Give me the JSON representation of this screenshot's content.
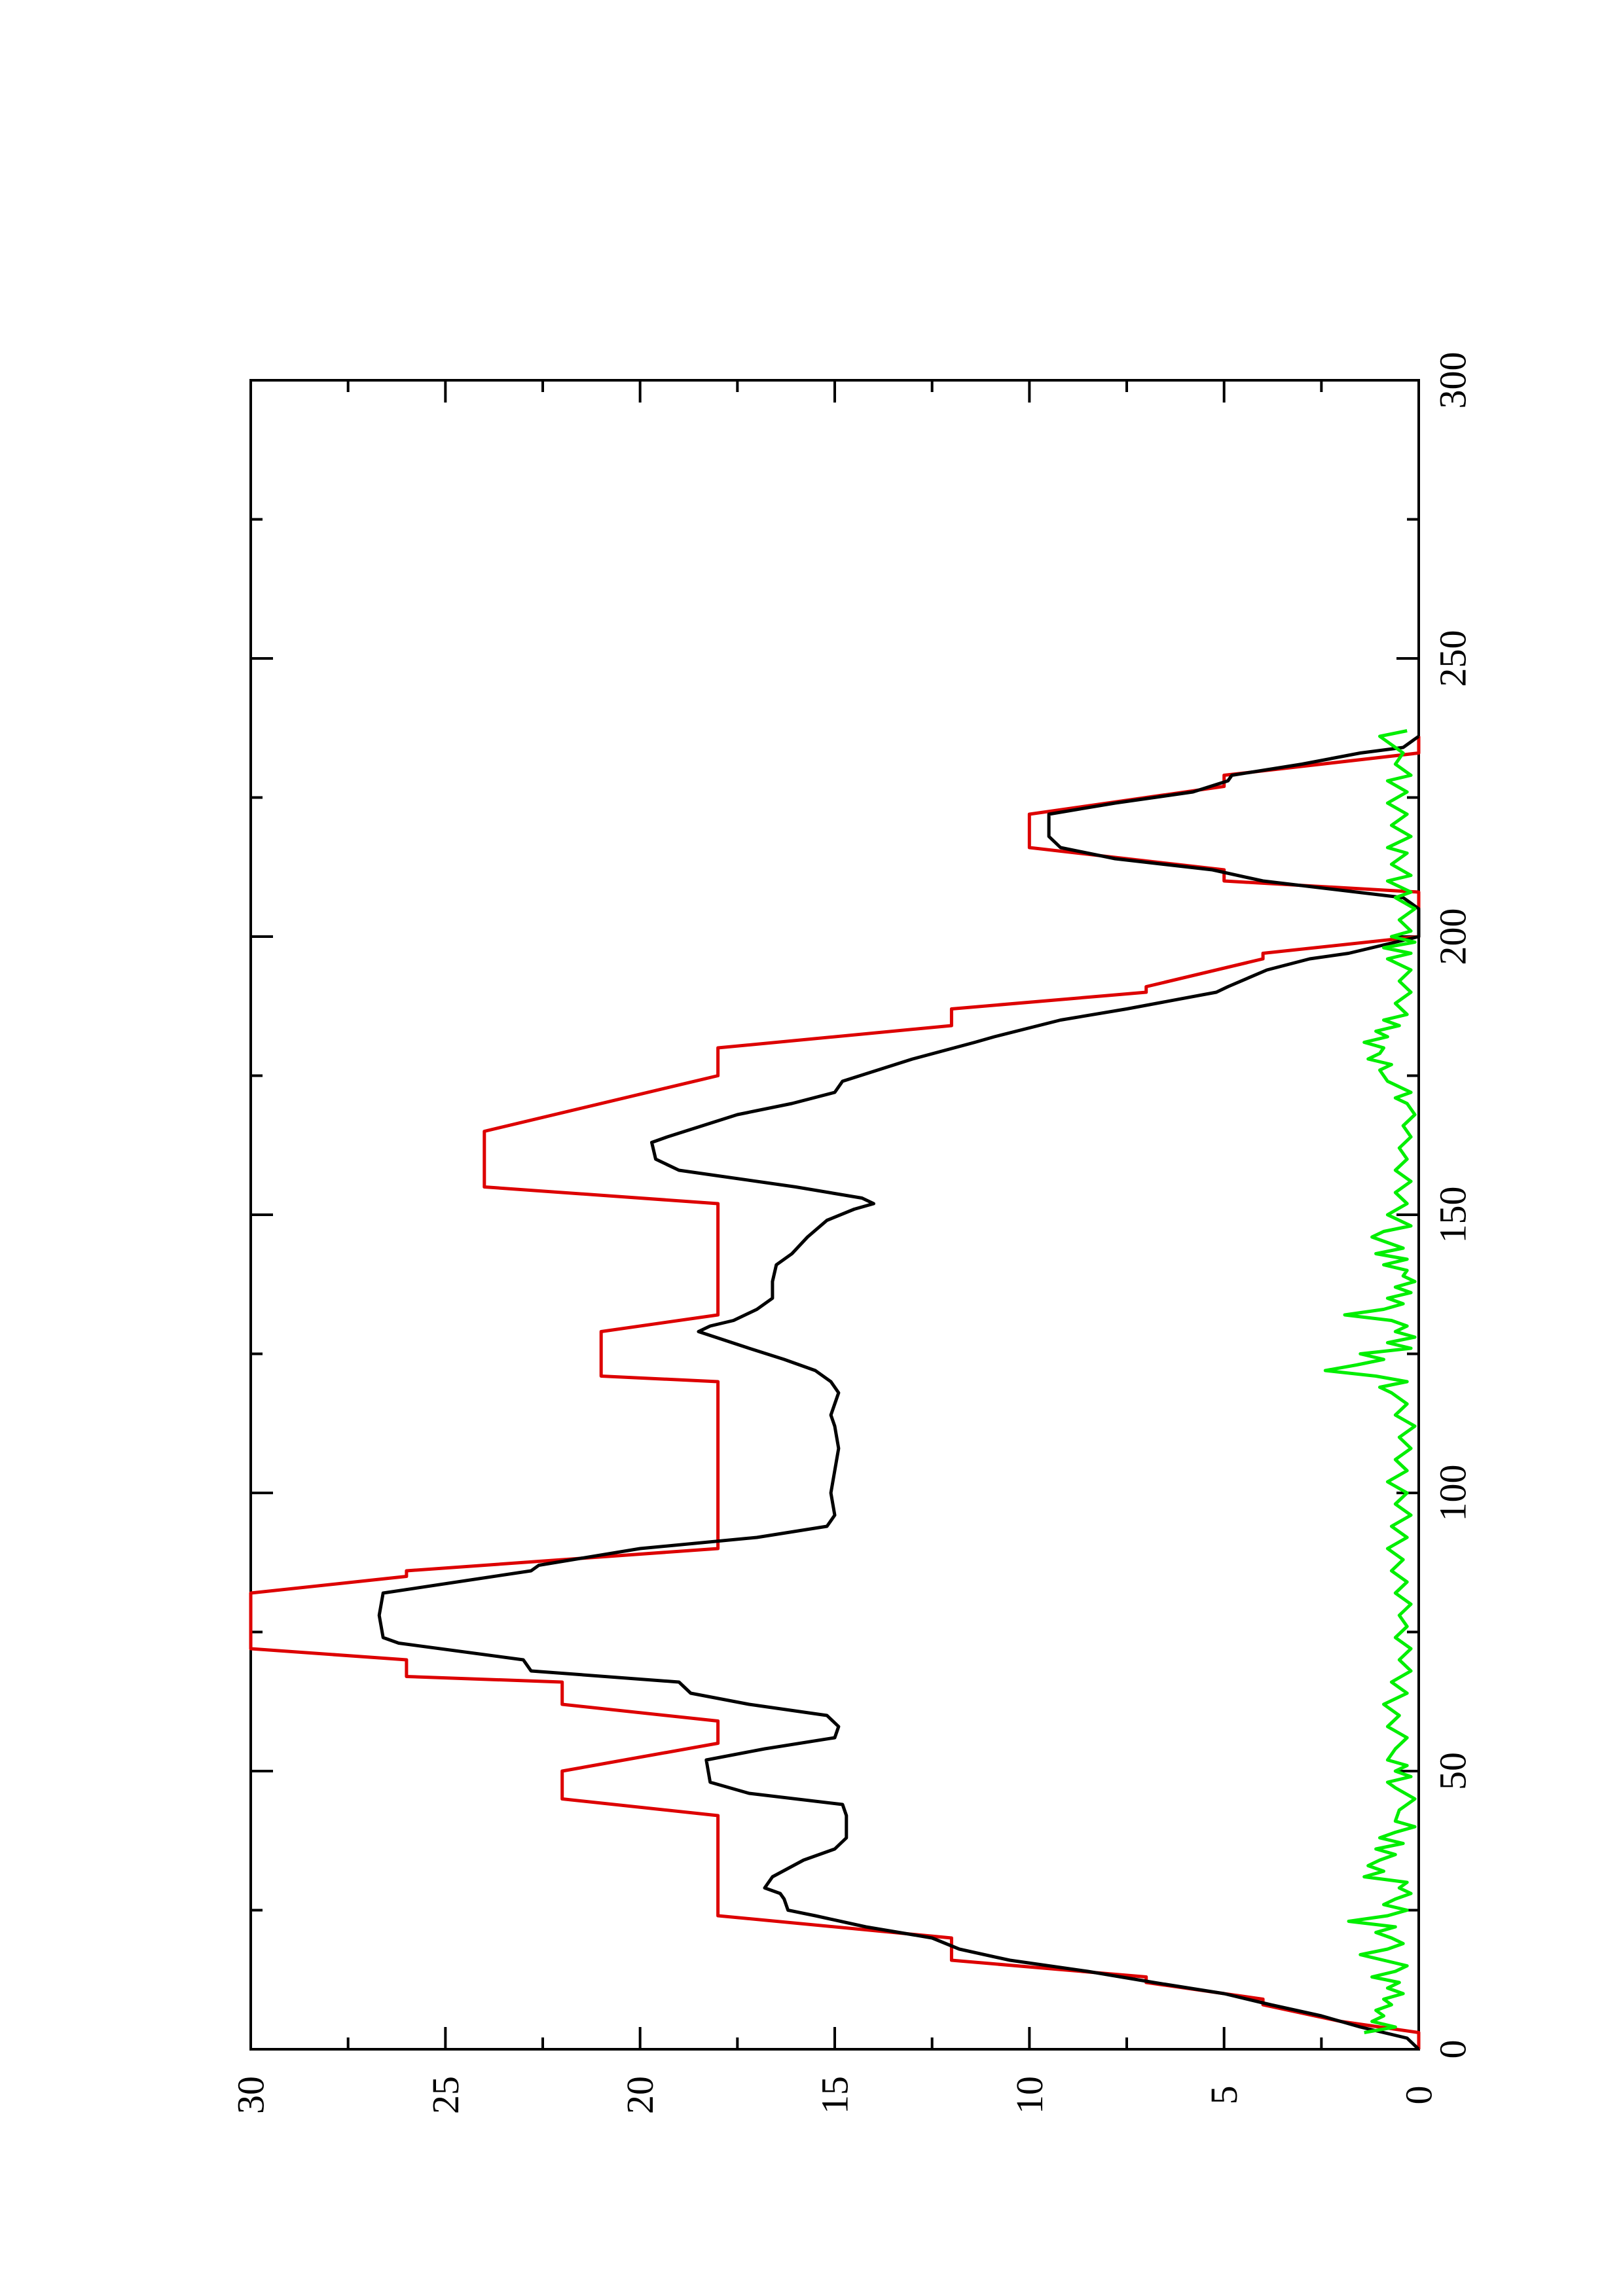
{
  "chart_data": {
    "type": "line",
    "orientation": "rotated-90-counterclockwise",
    "title": "",
    "xlabel": "",
    "ylabel": "",
    "xlim": [
      0,
      300
    ],
    "ylim": [
      0,
      30
    ],
    "x_ticks": [
      "0",
      "50",
      "100",
      "150",
      "200",
      "250",
      "300"
    ],
    "y_ticks": [
      "0",
      "5",
      "10",
      "15",
      "20",
      "25",
      "30"
    ],
    "grid": false,
    "legend": "none",
    "series": [
      {
        "color": "#dd0000",
        "points": [
          [
            0,
            0
          ],
          [
            3,
            0
          ],
          [
            5,
            2
          ],
          [
            8,
            4
          ],
          [
            9,
            4
          ],
          [
            12,
            7
          ],
          [
            13,
            7
          ],
          [
            16,
            12
          ],
          [
            17,
            12
          ],
          [
            20,
            12
          ],
          [
            24,
            18
          ],
          [
            42,
            18
          ],
          [
            45,
            22
          ],
          [
            50,
            22
          ],
          [
            55,
            18
          ],
          [
            59,
            18
          ],
          [
            62,
            22
          ],
          [
            66,
            22
          ],
          [
            67,
            26
          ],
          [
            70,
            26
          ],
          [
            72,
            30
          ],
          [
            82,
            30
          ],
          [
            85,
            26
          ],
          [
            86,
            26
          ],
          [
            90,
            18
          ],
          [
            120,
            18
          ],
          [
            121,
            21
          ],
          [
            129,
            21
          ],
          [
            132,
            18
          ],
          [
            152,
            18
          ],
          [
            155,
            24
          ],
          [
            165,
            24
          ],
          [
            175,
            18
          ],
          [
            180,
            18
          ],
          [
            184,
            12
          ],
          [
            187,
            12
          ],
          [
            190,
            7
          ],
          [
            191,
            7
          ],
          [
            196,
            4
          ],
          [
            197,
            4
          ],
          [
            200,
            0
          ],
          [
            203,
            0
          ],
          [
            205,
            0
          ],
          [
            208,
            0
          ],
          [
            210,
            5
          ],
          [
            212,
            5
          ],
          [
            216,
            10
          ],
          [
            222,
            10
          ],
          [
            227,
            5
          ],
          [
            229,
            5
          ],
          [
            233,
            0
          ],
          [
            236,
            0
          ]
        ]
      },
      {
        "color": "#000000",
        "points": [
          [
            0,
            0
          ],
          [
            2,
            0.3
          ],
          [
            4,
            1.5
          ],
          [
            6,
            2.5
          ],
          [
            8,
            3.8
          ],
          [
            10,
            5
          ],
          [
            12,
            6.8
          ],
          [
            14,
            8.5
          ],
          [
            16,
            10.5
          ],
          [
            18,
            11.8
          ],
          [
            20,
            12.5
          ],
          [
            22,
            14.2
          ],
          [
            24,
            15.5
          ],
          [
            25,
            16.2
          ],
          [
            27,
            16.3
          ],
          [
            28,
            16.4
          ],
          [
            29,
            16.8
          ],
          [
            31,
            16.6
          ],
          [
            34,
            15.8
          ],
          [
            36,
            15
          ],
          [
            38,
            14.7
          ],
          [
            40,
            14.7
          ],
          [
            42,
            14.7
          ],
          [
            44,
            14.8
          ],
          [
            46,
            17.2
          ],
          [
            48,
            18.2
          ],
          [
            52,
            18.3
          ],
          [
            54,
            16.8
          ],
          [
            56,
            15
          ],
          [
            58,
            14.9
          ],
          [
            60,
            15.2
          ],
          [
            62,
            17.2
          ],
          [
            64,
            18.7
          ],
          [
            66,
            19
          ],
          [
            68,
            22.8
          ],
          [
            70,
            23
          ],
          [
            73,
            26.2
          ],
          [
            74,
            26.6
          ],
          [
            78,
            26.7
          ],
          [
            82,
            26.6
          ],
          [
            86,
            22.8
          ],
          [
            87,
            22.6
          ],
          [
            90,
            20
          ],
          [
            92,
            17
          ],
          [
            94,
            15.2
          ],
          [
            96,
            15
          ],
          [
            100,
            15.1
          ],
          [
            104,
            15
          ],
          [
            108,
            14.9
          ],
          [
            112,
            15
          ],
          [
            114,
            15.1
          ],
          [
            116,
            15
          ],
          [
            118,
            14.9
          ],
          [
            120,
            15.1
          ],
          [
            122,
            15.5
          ],
          [
            124,
            16.3
          ],
          [
            126,
            17.2
          ],
          [
            129,
            18.5
          ],
          [
            130,
            18.2
          ],
          [
            131,
            17.6
          ],
          [
            133,
            17
          ],
          [
            135,
            16.6
          ],
          [
            138,
            16.6
          ],
          [
            141,
            16.5
          ],
          [
            143,
            16.1
          ],
          [
            146,
            15.7
          ],
          [
            149,
            15.2
          ],
          [
            151,
            14.5
          ],
          [
            152,
            14
          ],
          [
            153,
            14.3
          ],
          [
            155,
            16
          ],
          [
            157,
            18
          ],
          [
            158,
            19
          ],
          [
            160,
            19.6
          ],
          [
            163,
            19.7
          ],
          [
            164,
            19.3
          ],
          [
            166,
            18.4
          ],
          [
            168,
            17.5
          ],
          [
            170,
            16.1
          ],
          [
            172,
            15
          ],
          [
            174,
            14.8
          ],
          [
            178,
            13
          ],
          [
            181,
            11.4
          ],
          [
            182,
            10.9
          ],
          [
            185,
            9.2
          ],
          [
            187,
            7.5
          ],
          [
            190,
            5.2
          ],
          [
            191,
            4.9
          ],
          [
            194,
            3.9
          ],
          [
            196,
            2.8
          ],
          [
            197,
            1.8
          ],
          [
            200,
            0
          ],
          [
            203,
            0
          ],
          [
            205,
            0
          ],
          [
            207,
            0.4
          ],
          [
            210,
            4
          ],
          [
            212,
            5.3
          ],
          [
            214,
            7.8
          ],
          [
            216,
            9.2
          ],
          [
            218,
            9.5
          ],
          [
            222,
            9.5
          ],
          [
            224,
            7.8
          ],
          [
            226,
            5.8
          ],
          [
            228,
            4.9
          ],
          [
            229,
            4.8
          ],
          [
            231,
            3
          ],
          [
            233,
            1.5
          ],
          [
            234,
            0.4
          ],
          [
            236,
            0
          ]
        ]
      },
      {
        "color": "#00ee00",
        "points": [
          [
            3,
            1.4
          ],
          [
            4,
            0.6
          ],
          [
            5,
            1.2
          ],
          [
            6,
            0.9
          ],
          [
            7,
            1.1
          ],
          [
            8,
            0.7
          ],
          [
            9,
            0.9
          ],
          [
            10,
            0.4
          ],
          [
            11,
            0.8
          ],
          [
            12,
            0.5
          ],
          [
            13,
            1.2
          ],
          [
            14,
            0.6
          ],
          [
            15,
            0.3
          ],
          [
            16,
            0.9
          ],
          [
            17,
            1.5
          ],
          [
            18,
            0.8
          ],
          [
            19,
            0.4
          ],
          [
            20,
            0.7
          ],
          [
            21,
            1.1
          ],
          [
            22,
            0.6
          ],
          [
            23,
            1.8
          ],
          [
            24,
            0.8
          ],
          [
            25,
            0.3
          ],
          [
            26,
            0.9
          ],
          [
            27,
            0.6
          ],
          [
            28,
            0.2
          ],
          [
            29,
            0.5
          ],
          [
            30,
            0.3
          ],
          [
            31,
            1.4
          ],
          [
            32,
            0.9
          ],
          [
            33,
            1.3
          ],
          [
            34,
            1.0
          ],
          [
            35,
            0.6
          ],
          [
            36,
            1.1
          ],
          [
            37,
            0.4
          ],
          [
            38,
            1.0
          ],
          [
            39,
            0.6
          ],
          [
            40,
            0.1
          ],
          [
            41,
            0.6
          ],
          [
            43,
            0.5
          ],
          [
            45,
            0.1
          ],
          [
            47,
            0.6
          ],
          [
            48,
            0.8
          ],
          [
            49,
            0.2
          ],
          [
            50,
            0.6
          ],
          [
            51,
            0.3
          ],
          [
            52,
            0.8
          ],
          [
            54,
            0.6
          ],
          [
            56,
            0.3
          ],
          [
            58,
            0.8
          ],
          [
            60,
            0.5
          ],
          [
            62,
            0.9
          ],
          [
            64,
            0.3
          ],
          [
            66,
            0.7
          ],
          [
            68,
            0.2
          ],
          [
            70,
            0.5
          ],
          [
            72,
            0.2
          ],
          [
            74,
            0.6
          ],
          [
            76,
            0.3
          ],
          [
            78,
            0.5
          ],
          [
            80,
            0.2
          ],
          [
            82,
            0.6
          ],
          [
            84,
            0.3
          ],
          [
            86,
            0.7
          ],
          [
            88,
            0.4
          ],
          [
            90,
            0.8
          ],
          [
            92,
            0.3
          ],
          [
            94,
            0.7
          ],
          [
            96,
            0.2
          ],
          [
            98,
            0.6
          ],
          [
            100,
            0.3
          ],
          [
            102,
            0.8
          ],
          [
            104,
            0.3
          ],
          [
            106,
            0.6
          ],
          [
            108,
            0.2
          ],
          [
            110,
            0.5
          ],
          [
            112,
            0.1
          ],
          [
            114,
            0.6
          ],
          [
            116,
            0.3
          ],
          [
            118,
            0.7
          ],
          [
            119,
            1.0
          ],
          [
            120,
            0.3
          ],
          [
            121,
            1.1
          ],
          [
            122,
            2.4
          ],
          [
            123,
            1.6
          ],
          [
            124,
            0.9
          ],
          [
            125,
            1.5
          ],
          [
            126,
            0.2
          ],
          [
            127,
            0.8
          ],
          [
            128,
            0.1
          ],
          [
            129,
            0.6
          ],
          [
            130,
            0.3
          ],
          [
            131,
            0.7
          ],
          [
            132,
            1.9
          ],
          [
            133,
            0.9
          ],
          [
            134,
            0.4
          ],
          [
            135,
            0.8
          ],
          [
            136,
            0.2
          ],
          [
            137,
            0.6
          ],
          [
            138,
            0.1
          ],
          [
            139,
            0.4
          ],
          [
            140,
            0.3
          ],
          [
            141,
            0.9
          ],
          [
            142,
            0.3
          ],
          [
            143,
            1.1
          ],
          [
            144,
            0.4
          ],
          [
            145,
            0.8
          ],
          [
            146,
            1.2
          ],
          [
            147,
            0.9
          ],
          [
            148,
            0.2
          ],
          [
            149,
            0.5
          ],
          [
            150,
            0.8
          ],
          [
            152,
            0.3
          ],
          [
            154,
            0.6
          ],
          [
            156,
            0.2
          ],
          [
            158,
            0.6
          ],
          [
            160,
            0.3
          ],
          [
            162,
            0.5
          ],
          [
            164,
            0.2
          ],
          [
            166,
            0.4
          ],
          [
            168,
            0.1
          ],
          [
            170,
            0.3
          ],
          [
            171,
            0.6
          ],
          [
            172,
            0.2
          ],
          [
            174,
            0.8
          ],
          [
            176,
            1.0
          ],
          [
            177,
            0.7
          ],
          [
            178,
            1.3
          ],
          [
            179,
            1.0
          ],
          [
            180,
            0.9
          ],
          [
            181,
            1.4
          ],
          [
            182,
            0.8
          ],
          [
            183,
            1.1
          ],
          [
            184,
            0.5
          ],
          [
            185,
            0.9
          ],
          [
            186,
            0.3
          ],
          [
            188,
            0.6
          ],
          [
            190,
            0.2
          ],
          [
            192,
            0.5
          ],
          [
            194,
            0.2
          ],
          [
            196,
            0.8
          ],
          [
            197,
            0.2
          ],
          [
            198,
            0.9
          ],
          [
            199,
            0.1
          ],
          [
            200,
            0.7
          ],
          [
            201,
            0.2
          ],
          [
            203,
            0.5
          ],
          [
            205,
            0.1
          ],
          [
            207,
            0.6
          ],
          [
            208,
            0.2
          ],
          [
            210,
            0.8
          ],
          [
            211,
            0.2
          ],
          [
            213,
            0.7
          ],
          [
            215,
            0.3
          ],
          [
            216,
            0.8
          ],
          [
            218,
            0.2
          ],
          [
            220,
            0.7
          ],
          [
            222,
            0.3
          ],
          [
            224,
            0.8
          ],
          [
            226,
            0.3
          ],
          [
            228,
            0.8
          ],
          [
            229,
            0.2
          ],
          [
            231,
            0.6
          ],
          [
            233,
            0.4
          ],
          [
            235,
            0.8
          ],
          [
            236,
            1.0
          ],
          [
            237,
            0.3
          ]
        ]
      }
    ]
  }
}
